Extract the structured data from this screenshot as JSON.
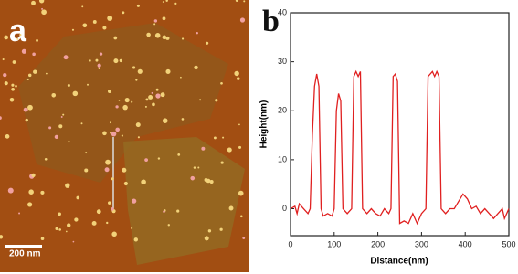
{
  "image_panel": {
    "label": "a",
    "scale_bar": "200 nm"
  },
  "chart_data": {
    "type": "line",
    "panel_label": "b",
    "x_label": "Distance(nm)",
    "y_label": "Height(nm)",
    "xlim": [
      0,
      500
    ],
    "ylim": [
      -5.5,
      40
    ],
    "xticks": [
      0,
      100,
      200,
      300,
      400,
      500
    ],
    "yticks": [
      0,
      10,
      20,
      30,
      40
    ],
    "series": [
      {
        "color": "#e02020",
        "x": [
          0,
          10,
          15,
          20,
          30,
          40,
          45,
          50,
          55,
          60,
          65,
          70,
          75,
          85,
          95,
          100,
          105,
          110,
          115,
          120,
          130,
          140,
          145,
          150,
          155,
          160,
          165,
          175,
          185,
          195,
          205,
          215,
          225,
          230,
          235,
          240,
          245,
          250,
          260,
          270,
          280,
          290,
          300,
          310,
          315,
          325,
          330,
          335,
          340,
          345,
          355,
          365,
          375,
          385,
          395,
          405,
          415,
          425,
          435,
          445,
          455,
          465,
          475,
          485,
          490,
          500
        ],
        "values": [
          0,
          0.5,
          -1,
          1,
          0,
          -1,
          0,
          15,
          25,
          27.5,
          25,
          0,
          -1.5,
          -1,
          -1.5,
          0,
          20,
          23.5,
          22,
          0,
          -1,
          0,
          27,
          28,
          27,
          28,
          0,
          -1,
          0,
          -1,
          -1.5,
          0,
          -1,
          0,
          27,
          27.5,
          26,
          -3,
          -2.5,
          -3,
          -1,
          -3,
          -1,
          0,
          27,
          28,
          27,
          28,
          27,
          0,
          -1,
          0,
          0,
          1.5,
          3,
          2,
          0,
          0.5,
          -1,
          0,
          -1,
          -2,
          -1,
          0,
          -2,
          0
        ]
      }
    ]
  }
}
